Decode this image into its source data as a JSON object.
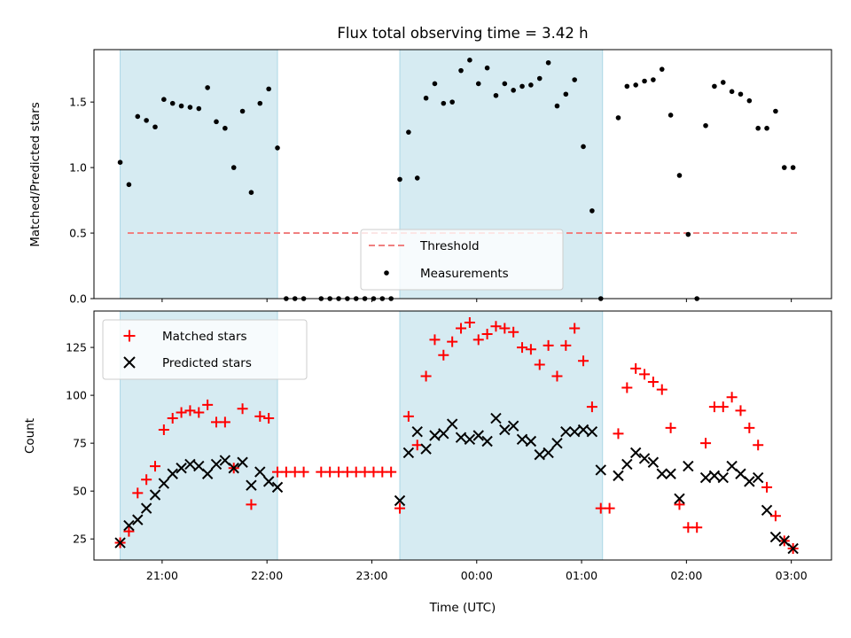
{
  "title": "Flux total observing time = 3.42 h",
  "chart_data": [
    {
      "type": "scatter",
      "ylabel": "Matched/Predicted stars",
      "xlim": [
        "20:21",
        "03:23"
      ],
      "ylim": [
        0,
        1.9
      ],
      "yticks": [
        "0.0",
        "0.5",
        "1.0",
        "1.5"
      ],
      "shaded_intervals": [
        [
          "20:36",
          "22:06"
        ],
        [
          "23:16",
          "01:12"
        ]
      ],
      "shade_color": "#add8e6",
      "threshold": {
        "name": "Threshold",
        "value": 0.5,
        "color": "#f08080",
        "style": "dashed"
      },
      "series": [
        {
          "name": "Measurements",
          "color": "#000000",
          "marker": "dot",
          "points": [
            [
              "20:36",
              1.04
            ],
            [
              "20:41",
              0.87
            ],
            [
              "20:46",
              1.39
            ],
            [
              "20:51",
              1.36
            ],
            [
              "20:56",
              1.31
            ],
            [
              "21:01",
              1.52
            ],
            [
              "21:06",
              1.49
            ],
            [
              "21:11",
              1.47
            ],
            [
              "21:16",
              1.46
            ],
            [
              "21:21",
              1.45
            ],
            [
              "21:26",
              1.61
            ],
            [
              "21:31",
              1.35
            ],
            [
              "21:36",
              1.3
            ],
            [
              "21:41",
              1.0
            ],
            [
              "21:46",
              1.43
            ],
            [
              "21:51",
              0.81
            ],
            [
              "21:56",
              1.49
            ],
            [
              "22:01",
              1.6
            ],
            [
              "22:06",
              1.15
            ],
            [
              "22:11",
              0
            ],
            [
              "22:16",
              0
            ],
            [
              "22:21",
              0
            ],
            [
              "22:31",
              0
            ],
            [
              "22:36",
              0
            ],
            [
              "22:41",
              0
            ],
            [
              "22:46",
              0
            ],
            [
              "22:51",
              0
            ],
            [
              "22:56",
              0
            ],
            [
              "23:01",
              0
            ],
            [
              "23:06",
              0
            ],
            [
              "23:11",
              0
            ],
            [
              "23:16",
              0.91
            ],
            [
              "23:21",
              1.27
            ],
            [
              "23:26",
              0.92
            ],
            [
              "23:31",
              1.53
            ],
            [
              "23:36",
              1.64
            ],
            [
              "23:41",
              1.49
            ],
            [
              "23:46",
              1.5
            ],
            [
              "23:51",
              1.74
            ],
            [
              "23:56",
              1.82
            ],
            [
              "00:01",
              1.64
            ],
            [
              "00:06",
              1.76
            ],
            [
              "00:11",
              1.55
            ],
            [
              "00:16",
              1.64
            ],
            [
              "00:21",
              1.59
            ],
            [
              "00:26",
              1.62
            ],
            [
              "00:31",
              1.63
            ],
            [
              "00:36",
              1.68
            ],
            [
              "00:41",
              1.8
            ],
            [
              "00:46",
              1.47
            ],
            [
              "00:51",
              1.56
            ],
            [
              "00:56",
              1.67
            ],
            [
              "01:01",
              1.16
            ],
            [
              "01:06",
              0.67
            ],
            [
              "01:11",
              0
            ],
            [
              "01:21",
              1.38
            ],
            [
              "01:26",
              1.62
            ],
            [
              "01:31",
              1.63
            ],
            [
              "01:36",
              1.66
            ],
            [
              "01:41",
              1.67
            ],
            [
              "01:46",
              1.75
            ],
            [
              "01:51",
              1.4
            ],
            [
              "01:56",
              0.94
            ],
            [
              "02:01",
              0.49
            ],
            [
              "02:06",
              0
            ],
            [
              "02:11",
              1.32
            ],
            [
              "02:16",
              1.62
            ],
            [
              "02:21",
              1.65
            ],
            [
              "02:26",
              1.58
            ],
            [
              "02:31",
              1.56
            ],
            [
              "02:36",
              1.51
            ],
            [
              "02:41",
              1.3
            ],
            [
              "02:46",
              1.3
            ],
            [
              "02:51",
              1.43
            ],
            [
              "02:56",
              1.0
            ],
            [
              "03:01",
              1.0
            ]
          ]
        }
      ],
      "legend": {
        "placement": "lower-center",
        "entries": [
          "Threshold",
          "Measurements"
        ]
      }
    },
    {
      "type": "scatter",
      "xlabel": "Time (UTC)",
      "ylabel": "Count",
      "xlim": [
        "20:21",
        "03:23"
      ],
      "ylim": [
        14,
        144
      ],
      "yticks": [
        "25",
        "50",
        "75",
        "100",
        "125"
      ],
      "xticks": [
        "21:00",
        "22:00",
        "23:00",
        "00:00",
        "01:00",
        "02:00",
        "03:00"
      ],
      "shaded_intervals": [
        [
          "20:36",
          "22:06"
        ],
        [
          "23:16",
          "01:12"
        ]
      ],
      "shade_color": "#add8e6",
      "series": [
        {
          "name": "Matched stars",
          "color": "#ff0000",
          "marker": "plus",
          "points": [
            [
              "20:36",
              23
            ],
            [
              "20:41",
              29
            ],
            [
              "20:46",
              49
            ],
            [
              "20:51",
              56
            ],
            [
              "20:56",
              63
            ],
            [
              "21:01",
              82
            ],
            [
              "21:06",
              88
            ],
            [
              "21:11",
              91
            ],
            [
              "21:16",
              92
            ],
            [
              "21:21",
              91
            ],
            [
              "21:26",
              95
            ],
            [
              "21:31",
              86
            ],
            [
              "21:36",
              86
            ],
            [
              "21:41",
              62
            ],
            [
              "21:46",
              93
            ],
            [
              "21:51",
              43
            ],
            [
              "21:56",
              89
            ],
            [
              "22:01",
              88
            ],
            [
              "22:06",
              60
            ],
            [
              "22:11",
              60
            ],
            [
              "22:16",
              60
            ],
            [
              "22:21",
              60
            ],
            [
              "22:31",
              60
            ],
            [
              "22:36",
              60
            ],
            [
              "22:41",
              60
            ],
            [
              "22:46",
              60
            ],
            [
              "22:51",
              60
            ],
            [
              "22:56",
              60
            ],
            [
              "23:01",
              60
            ],
            [
              "23:06",
              60
            ],
            [
              "23:11",
              60
            ],
            [
              "23:16",
              41
            ],
            [
              "23:21",
              89
            ],
            [
              "23:26",
              74
            ],
            [
              "23:31",
              110
            ],
            [
              "23:36",
              129
            ],
            [
              "23:41",
              121
            ],
            [
              "23:46",
              128
            ],
            [
              "23:51",
              135
            ],
            [
              "23:56",
              138
            ],
            [
              "00:01",
              129
            ],
            [
              "00:06",
              132
            ],
            [
              "00:11",
              136
            ],
            [
              "00:16",
              135
            ],
            [
              "00:21",
              133
            ],
            [
              "00:26",
              125
            ],
            [
              "00:31",
              124
            ],
            [
              "00:36",
              116
            ],
            [
              "00:41",
              126
            ],
            [
              "00:46",
              110
            ],
            [
              "00:51",
              126
            ],
            [
              "00:56",
              135
            ],
            [
              "01:01",
              118
            ],
            [
              "01:06",
              94
            ],
            [
              "01:11",
              41
            ],
            [
              "01:16",
              41
            ],
            [
              "01:21",
              80
            ],
            [
              "01:26",
              104
            ],
            [
              "01:31",
              114
            ],
            [
              "01:36",
              111
            ],
            [
              "01:41",
              107
            ],
            [
              "01:46",
              103
            ],
            [
              "01:51",
              83
            ],
            [
              "01:56",
              43
            ],
            [
              "02:01",
              31
            ],
            [
              "02:06",
              31
            ],
            [
              "02:11",
              75
            ],
            [
              "02:16",
              94
            ],
            [
              "02:21",
              94
            ],
            [
              "02:26",
              99
            ],
            [
              "02:31",
              92
            ],
            [
              "02:36",
              83
            ],
            [
              "02:41",
              74
            ],
            [
              "02:46",
              52
            ],
            [
              "02:51",
              37
            ],
            [
              "02:56",
              24
            ],
            [
              "03:01",
              20
            ]
          ]
        },
        {
          "name": "Predicted stars",
          "color": "#000000",
          "marker": "x",
          "points": [
            [
              "20:36",
              23
            ],
            [
              "20:41",
              32
            ],
            [
              "20:46",
              35
            ],
            [
              "20:51",
              41
            ],
            [
              "20:56",
              48
            ],
            [
              "21:01",
              54
            ],
            [
              "21:06",
              59
            ],
            [
              "21:11",
              62
            ],
            [
              "21:16",
              64
            ],
            [
              "21:21",
              63
            ],
            [
              "21:26",
              59
            ],
            [
              "21:31",
              64
            ],
            [
              "21:36",
              66
            ],
            [
              "21:41",
              62
            ],
            [
              "21:46",
              65
            ],
            [
              "21:51",
              53
            ],
            [
              "21:56",
              60
            ],
            [
              "22:01",
              55
            ],
            [
              "22:06",
              52
            ],
            [
              "23:16",
              45
            ],
            [
              "23:21",
              70
            ],
            [
              "23:26",
              81
            ],
            [
              "23:31",
              72
            ],
            [
              "23:36",
              79
            ],
            [
              "23:41",
              80
            ],
            [
              "23:46",
              85
            ],
            [
              "23:51",
              78
            ],
            [
              "23:56",
              77
            ],
            [
              "00:01",
              79
            ],
            [
              "00:06",
              76
            ],
            [
              "00:11",
              88
            ],
            [
              "00:16",
              82
            ],
            [
              "00:21",
              84
            ],
            [
              "00:26",
              77
            ],
            [
              "00:31",
              76
            ],
            [
              "00:36",
              69
            ],
            [
              "00:41",
              70
            ],
            [
              "00:46",
              75
            ],
            [
              "00:51",
              81
            ],
            [
              "00:56",
              81
            ],
            [
              "01:01",
              82
            ],
            [
              "01:06",
              81
            ],
            [
              "01:11",
              61
            ],
            [
              "01:21",
              58
            ],
            [
              "01:26",
              64
            ],
            [
              "01:31",
              70
            ],
            [
              "01:36",
              67
            ],
            [
              "01:41",
              65
            ],
            [
              "01:46",
              59
            ],
            [
              "01:51",
              59
            ],
            [
              "01:56",
              46
            ],
            [
              "02:01",
              63
            ],
            [
              "02:11",
              57
            ],
            [
              "02:16",
              58
            ],
            [
              "02:21",
              57
            ],
            [
              "02:26",
              63
            ],
            [
              "02:31",
              59
            ],
            [
              "02:36",
              55
            ],
            [
              "02:41",
              57
            ],
            [
              "02:46",
              40
            ],
            [
              "02:51",
              26
            ],
            [
              "02:56",
              24
            ],
            [
              "03:01",
              20
            ]
          ]
        }
      ],
      "legend": {
        "placement": "top-left",
        "entries": [
          "Matched stars",
          "Predicted stars"
        ]
      }
    }
  ]
}
